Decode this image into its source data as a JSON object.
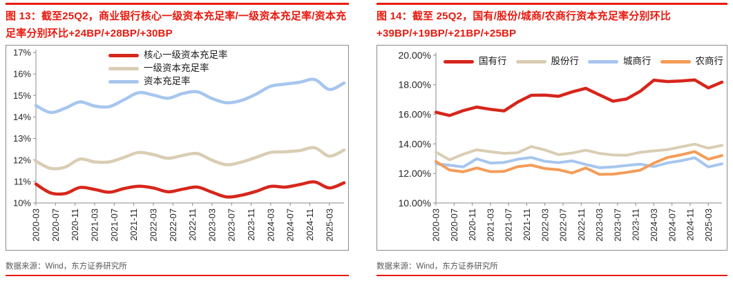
{
  "page": {
    "background": "#ffffff",
    "accent_red": "#e8190e",
    "axis_color": "#8a8a8a",
    "label_color": "#262626",
    "source_color": "#595959"
  },
  "chart_data": [
    {
      "type": "line",
      "smooth": true,
      "grid": false,
      "title": "图 13：截至25Q2，商业银行核心一级资本充足率/一级资本充足率/资本充足率分别环比+24BP/+28BP/+30BP",
      "source": "数据来源：Wind，东方证券研究所",
      "legend_position": "top-center-vertical",
      "x": [
        "2020-03",
        "2020-06",
        "2020-09",
        "2020-12",
        "2021-03",
        "2021-06",
        "2021-09",
        "2021-12",
        "2022-03",
        "2022-06",
        "2022-09",
        "2022-12",
        "2023-03",
        "2023-06",
        "2023-09",
        "2023-12",
        "2024-03",
        "2024-06",
        "2024-09",
        "2024-12",
        "2025-03",
        "2025-06"
      ],
      "x_tick_labels": [
        "2020-03",
        "2020-07",
        "2020-11",
        "2021-03",
        "2021-07",
        "2021-11",
        "2022-03",
        "2022-07",
        "2022-11",
        "2023-03",
        "2023-07",
        "2023-11",
        "2024-03",
        "2024-07",
        "2024-11",
        "2025-03"
      ],
      "ylim": [
        10,
        17
      ],
      "ytick_step": 1,
      "ytick_labels": [
        "17%",
        "16%",
        "15%",
        "14%",
        "13%",
        "12%",
        "11%",
        "10%"
      ],
      "series": [
        {
          "name": "核心一级资本充足率",
          "color": "#d7261c",
          "values": [
            10.88,
            10.47,
            10.44,
            10.72,
            10.63,
            10.5,
            10.67,
            10.78,
            10.7,
            10.52,
            10.64,
            10.74,
            10.5,
            10.28,
            10.36,
            10.54,
            10.77,
            10.74,
            10.86,
            10.98,
            10.7,
            10.94
          ]
        },
        {
          "name": "一级资本充足率",
          "color": "#d9cdb3",
          "values": [
            11.94,
            11.61,
            11.67,
            12.04,
            11.91,
            11.91,
            12.12,
            12.35,
            12.25,
            12.08,
            12.21,
            12.3,
            11.99,
            11.78,
            11.9,
            12.12,
            12.35,
            12.38,
            12.44,
            12.57,
            12.18,
            12.46
          ]
        },
        {
          "name": "资本充足率",
          "color": "#a6c6ee",
          "values": [
            14.53,
            14.21,
            14.41,
            14.7,
            14.51,
            14.48,
            14.8,
            15.13,
            15.02,
            14.87,
            15.09,
            15.17,
            14.86,
            14.66,
            14.77,
            15.06,
            15.43,
            15.53,
            15.62,
            15.74,
            15.28,
            15.58
          ]
        }
      ]
    },
    {
      "type": "line",
      "smooth": false,
      "grid": false,
      "title": "图 14：截至 25Q2，国有/股份/城商/农商行资本充足率分别环比+39BP/+19BP/+21BP/+25BP",
      "source": "数据来源：Wind，东方证券研究所",
      "legend_position": "top-horizontal",
      "x": [
        "2020-03",
        "2020-06",
        "2020-09",
        "2020-12",
        "2021-03",
        "2021-06",
        "2021-09",
        "2021-12",
        "2022-03",
        "2022-06",
        "2022-09",
        "2022-12",
        "2023-03",
        "2023-06",
        "2023-09",
        "2023-12",
        "2024-03",
        "2024-06",
        "2024-09",
        "2024-12",
        "2025-03",
        "2025-06"
      ],
      "x_tick_labels": [
        "2020-03",
        "2020-07",
        "2020-11",
        "2021-03",
        "2021-07",
        "2021-11",
        "2022-03",
        "2022-07",
        "2022-11",
        "2023-03",
        "2023-07",
        "2023-11",
        "2024-03",
        "2024-07",
        "2024-11",
        "2025-03"
      ],
      "ylim": [
        10,
        20
      ],
      "ytick_step": 2,
      "ytick_labels": [
        "20.00%",
        "18.00%",
        "16.00%",
        "14.00%",
        "12.00%",
        "10.00%"
      ],
      "series": [
        {
          "name": "国有行",
          "color": "#d7261c",
          "values": [
            16.14,
            15.92,
            16.25,
            16.49,
            16.34,
            16.23,
            16.83,
            17.29,
            17.3,
            17.22,
            17.52,
            17.76,
            17.32,
            16.89,
            17.04,
            17.56,
            18.31,
            18.22,
            18.26,
            18.33,
            17.79,
            18.18
          ]
        },
        {
          "name": "股份行",
          "color": "#d9cdb3",
          "values": [
            13.44,
            12.92,
            13.3,
            13.6,
            13.47,
            13.36,
            13.4,
            13.82,
            13.59,
            13.27,
            13.38,
            13.57,
            13.36,
            13.25,
            13.23,
            13.43,
            13.53,
            13.61,
            13.8,
            13.98,
            13.71,
            13.9
          ]
        },
        {
          "name": "城商行",
          "color": "#a6c6ee",
          "values": [
            12.65,
            12.56,
            12.44,
            12.99,
            12.7,
            12.74,
            12.96,
            13.08,
            12.82,
            12.73,
            12.85,
            12.61,
            12.39,
            12.44,
            12.54,
            12.63,
            12.46,
            12.71,
            12.86,
            13.06,
            12.44,
            12.65
          ]
        },
        {
          "name": "农商行",
          "color": "#f49c58",
          "values": [
            12.81,
            12.23,
            12.11,
            12.37,
            12.12,
            12.14,
            12.46,
            12.56,
            12.33,
            12.25,
            12.03,
            12.37,
            11.94,
            11.95,
            12.07,
            12.22,
            12.7,
            13.08,
            13.26,
            13.48,
            12.96,
            13.21
          ]
        }
      ]
    }
  ]
}
